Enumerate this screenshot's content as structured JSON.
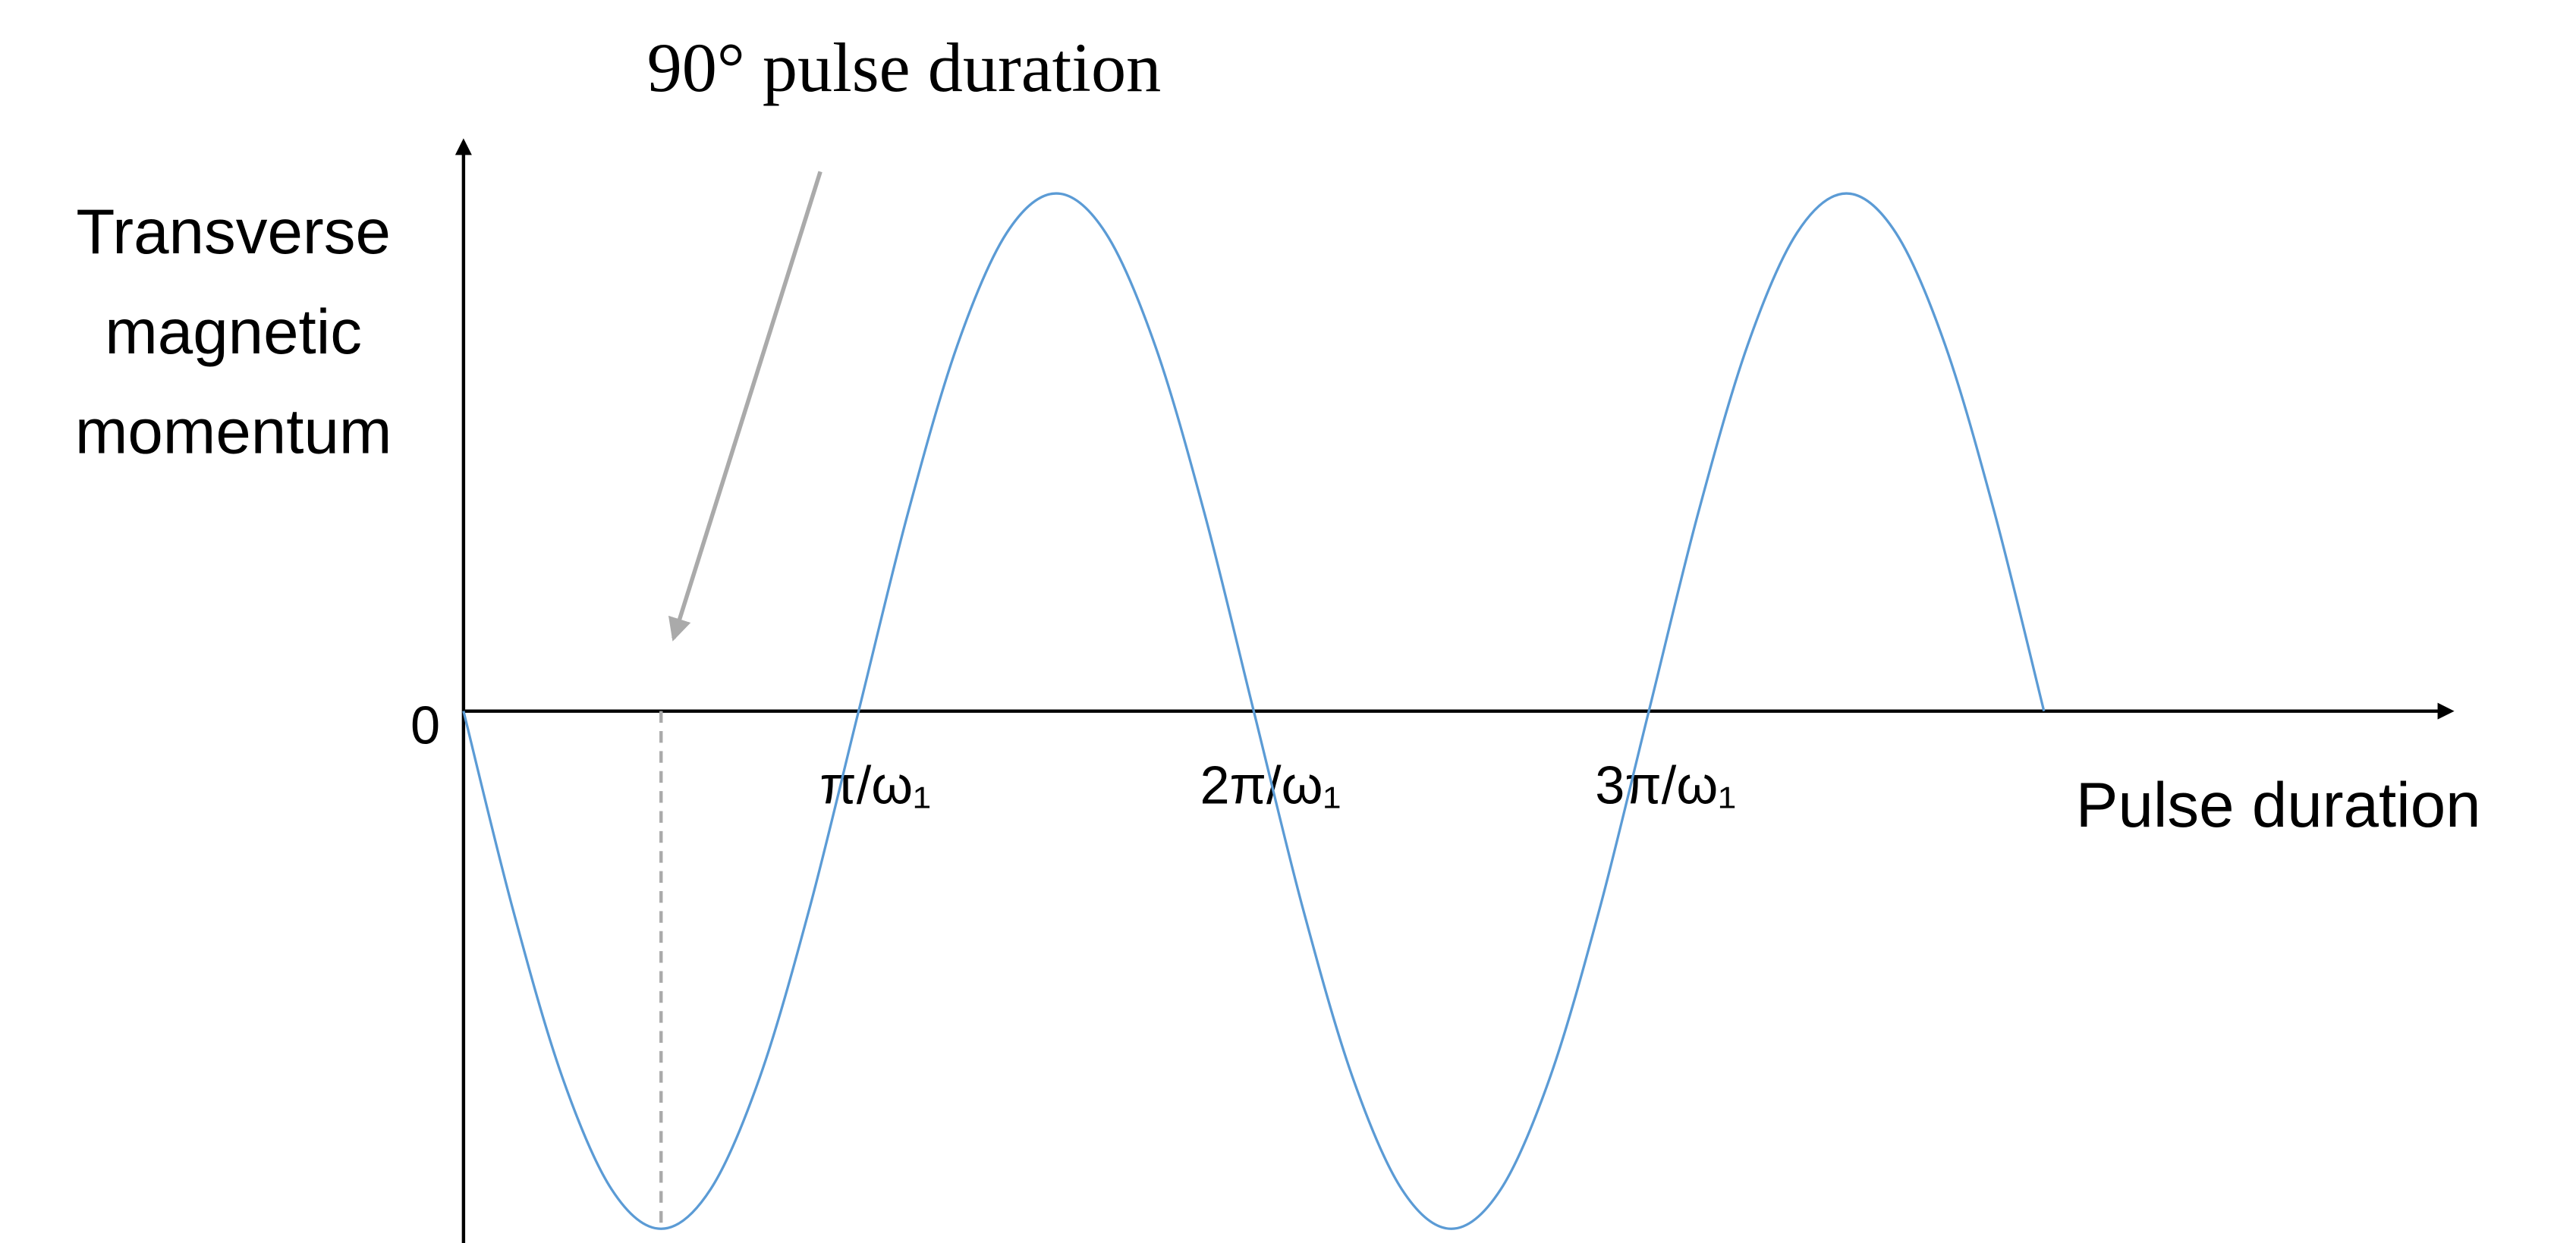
{
  "chart_data": {
    "type": "line",
    "title": "90° pulse duration",
    "x_label": "Pulse duration",
    "y_label": "Transverse magnetic momentum",
    "x": [
      0,
      0.125,
      0.25,
      0.375,
      0.5,
      0.625,
      0.75,
      0.875,
      1,
      1.125,
      1.25,
      1.375,
      1.5,
      1.625,
      1.75,
      1.875,
      2,
      2.125,
      2.25,
      2.375,
      2.5,
      2.625,
      2.75,
      2.875,
      3,
      3.125,
      3.25,
      3.375,
      3.5,
      3.625,
      3.75,
      3.875,
      4
    ],
    "series": [
      {
        "color": "#5b9bd5",
        "values": [
          0,
          -0.383,
          -0.707,
          -0.924,
          -1,
          -0.924,
          -0.707,
          -0.383,
          0,
          0.383,
          0.707,
          0.924,
          1,
          0.924,
          0.707,
          0.383,
          0,
          -0.383,
          -0.707,
          -0.924,
          -1,
          -0.924,
          -0.707,
          -0.383,
          0,
          0.383,
          0.707,
          0.924,
          1,
          0.924,
          0.707,
          0.383,
          0
        ]
      }
    ],
    "xlim": [
      0,
      5.03
    ],
    "ylim": [
      -1.06,
      1.1
    ],
    "xticks": [
      {
        "value": 1,
        "label": "π/ω₁"
      },
      {
        "value": 2,
        "label": "2π/ω₁"
      },
      {
        "value": 3,
        "label": "3π/ω₁"
      }
    ],
    "yticks": [
      0
    ],
    "annotation_x": 0.5
  }
}
